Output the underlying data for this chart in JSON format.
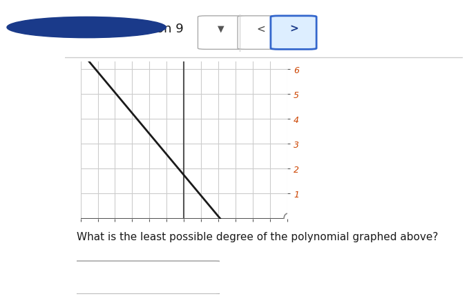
{
  "title_text": "Question 9",
  "question_text": "What is the least possible degree of the polynomial graphed above?",
  "bg_color": "#ffffff",
  "grid_color": "#cccccc",
  "axis_color": "#555555",
  "line_color": "#1a1a1a",
  "tick_label_color": "#cc4400",
  "x_min": -6,
  "x_max": 6,
  "y_min": 0,
  "y_max": 6.3,
  "x_ticks": [
    -6,
    -5,
    -4,
    -3,
    -2,
    -1,
    0,
    1,
    2,
    3,
    4,
    5,
    6
  ],
  "y_ticks": [
    1,
    2,
    3,
    4,
    5,
    6
  ],
  "line_x": [
    -5.5,
    2.1
  ],
  "line_y": [
    6.3,
    0.0
  ],
  "nav_button_color": "#ffffff",
  "nav_border_color": "#aaaaaa",
  "sep_line_color": "#cccccc"
}
